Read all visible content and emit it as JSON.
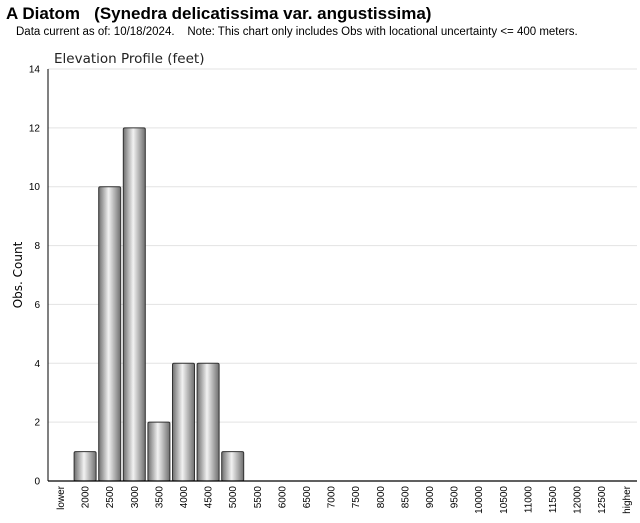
{
  "header": {
    "title": "A Diatom   (Synedra delicatissima var. angustissima)",
    "subtitle": "Data current as of: 10/18/2024.    Note: This chart only includes Obs with locational uncertainty <= 400 meters."
  },
  "colors": {
    "bar_dark": "#6e6e6e",
    "bar_light": "#f2f2f2",
    "bar_stroke": "#333333",
    "grid": "#e3e3e3"
  },
  "chart_data": {
    "type": "bar",
    "title": "Elevation Profile (feet)",
    "xlabel": "",
    "ylabel": "Obs. Count",
    "ylim": [
      0,
      14
    ],
    "yticks": [
      "0",
      "2",
      "4",
      "6",
      "8",
      "10",
      "12",
      "14"
    ],
    "grid": true,
    "categories": [
      "lower",
      "2000",
      "2500",
      "3000",
      "3500",
      "4000",
      "4500",
      "5000",
      "5500",
      "6000",
      "6500",
      "7000",
      "7500",
      "8000",
      "8500",
      "9000",
      "9500",
      "10000",
      "10500",
      "11000",
      "11500",
      "12000",
      "12500",
      "higher"
    ],
    "values": [
      0,
      1,
      10,
      12,
      2,
      4,
      4,
      1,
      0,
      0,
      0,
      0,
      0,
      0,
      0,
      0,
      0,
      0,
      0,
      0,
      0,
      0,
      0,
      0
    ]
  }
}
